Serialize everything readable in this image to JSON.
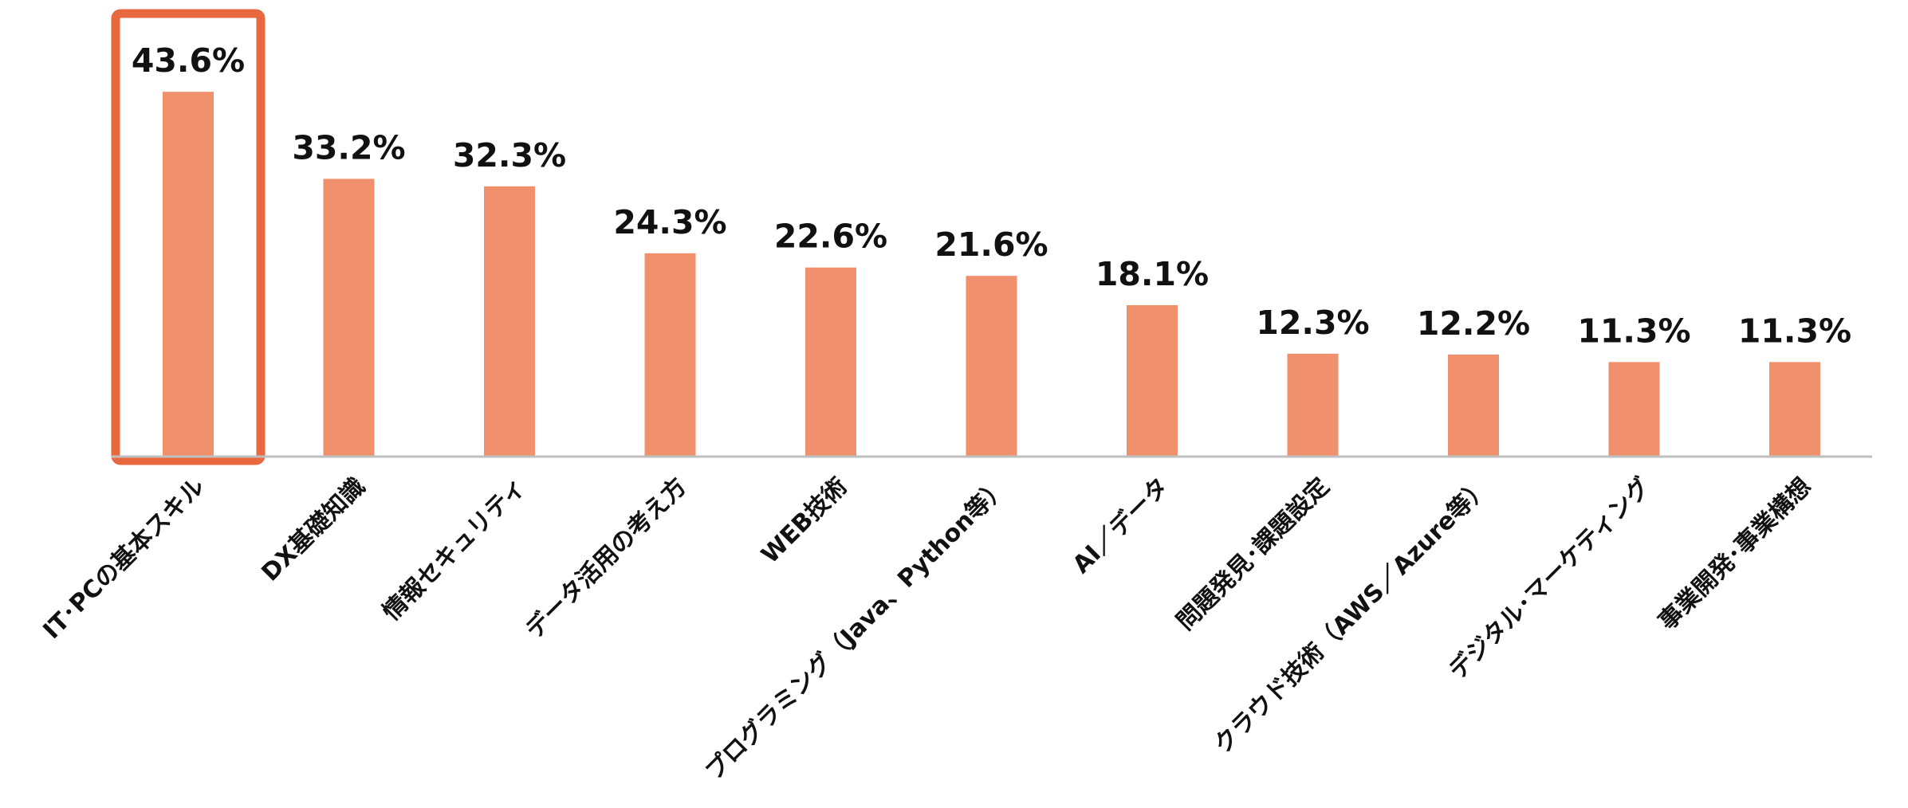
{
  "chart_data": {
    "type": "bar",
    "categories": [
      "IT･PCの基本スキル",
      "DX基礎知識",
      "情報セキュリティ",
      "データ活用の考え方",
      "WEB技術",
      "プログラミング（Java、Python等）",
      "AI／データ",
      "問題発見･課題設定",
      "クラウド技術（AWS／Azure等）",
      "デジタル･マーケティング",
      "事業開発･事業構想"
    ],
    "values": [
      43.6,
      33.2,
      32.3,
      24.3,
      22.6,
      21.6,
      18.1,
      12.3,
      12.2,
      11.3,
      11.3
    ],
    "data_labels": [
      "43.6%",
      "33.2%",
      "32.3%",
      "24.3%",
      "22.6%",
      "21.6%",
      "18.1%",
      "12.3%",
      "12.2%",
      "11.3%",
      "11.3%"
    ],
    "ylim": [
      0,
      50
    ],
    "grid": false,
    "highlighted_category": "IT･PCの基本スキル",
    "colors": {
      "bar": "#F0906D",
      "highlight_box": "#E8683F",
      "axis": "#BFBFBF",
      "text": "#111111"
    }
  }
}
